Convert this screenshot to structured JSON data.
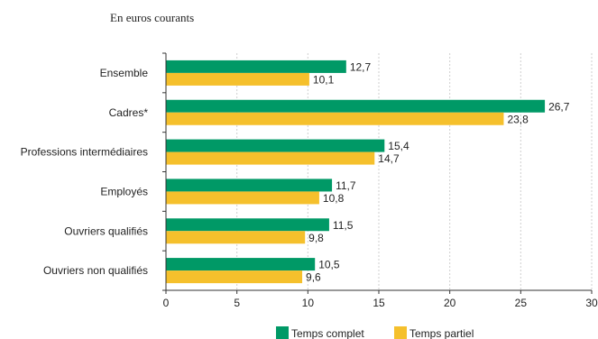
{
  "chart_data": {
    "type": "bar",
    "orientation": "horizontal",
    "subtitle": "En euros courants",
    "categories": [
      "Ensemble",
      "Cadres*",
      "Professions intermédiaires",
      "Employés",
      "Ouvriers qualifiés",
      "Ouvriers non qualifiés"
    ],
    "series": [
      {
        "name": "Temps complet",
        "color": "#009966",
        "values": [
          12.7,
          26.7,
          15.4,
          11.7,
          11.5,
          10.5
        ],
        "labels": [
          "12,7",
          "26,7",
          "15,4",
          "11,7",
          "11,5",
          "10,5"
        ]
      },
      {
        "name": "Temps partiel",
        "color": "#F5C02C",
        "values": [
          10.1,
          23.8,
          14.7,
          10.8,
          9.8,
          9.6
        ],
        "labels": [
          "10,1",
          "23,8",
          "14,7",
          "10,8",
          "9,8",
          "9,6"
        ]
      }
    ],
    "xlim": [
      0,
      30
    ],
    "xticks": [
      0,
      5,
      10,
      15,
      20,
      25,
      30
    ],
    "grid": "vertical-dotted",
    "legend": "bottom"
  }
}
